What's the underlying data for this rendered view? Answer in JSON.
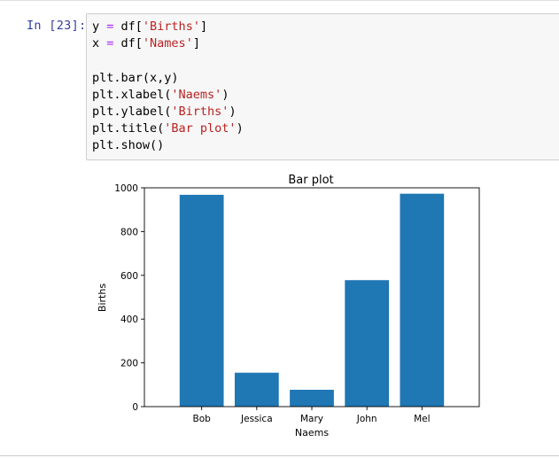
{
  "cell": {
    "prompt": "In [23]:",
    "code": [
      [
        {
          "t": "y "
        },
        {
          "t": "=",
          "c": "op"
        },
        {
          "t": " df["
        },
        {
          "t": "'Births'",
          "c": "str"
        },
        {
          "t": "]"
        }
      ],
      [
        {
          "t": "x "
        },
        {
          "t": "=",
          "c": "op"
        },
        {
          "t": " df["
        },
        {
          "t": "'Names'",
          "c": "str"
        },
        {
          "t": "]"
        }
      ],
      [],
      [
        {
          "t": "plt.bar(x,y)"
        }
      ],
      [
        {
          "t": "plt.xlabel("
        },
        {
          "t": "'Naems'",
          "c": "str"
        },
        {
          "t": ")"
        }
      ],
      [
        {
          "t": "plt.ylabel("
        },
        {
          "t": "'Births'",
          "c": "str"
        },
        {
          "t": ")"
        }
      ],
      [
        {
          "t": "plt.title("
        },
        {
          "t": "'Bar plot'",
          "c": "str"
        },
        {
          "t": ")"
        }
      ],
      [
        {
          "t": "plt.show()"
        }
      ]
    ]
  },
  "chart_data": {
    "type": "bar",
    "title": "Bar plot",
    "xlabel": "Naems",
    "ylabel": "Births",
    "categories": [
      "Bob",
      "Jessica",
      "Mary",
      "John",
      "Mel"
    ],
    "values": [
      968,
      155,
      77,
      578,
      973
    ],
    "ylim": [
      0,
      1000
    ],
    "yticks": [
      "0",
      "200",
      "400",
      "600",
      "800",
      "1000"
    ],
    "bar_color": "#1f77b4",
    "grid": false
  }
}
